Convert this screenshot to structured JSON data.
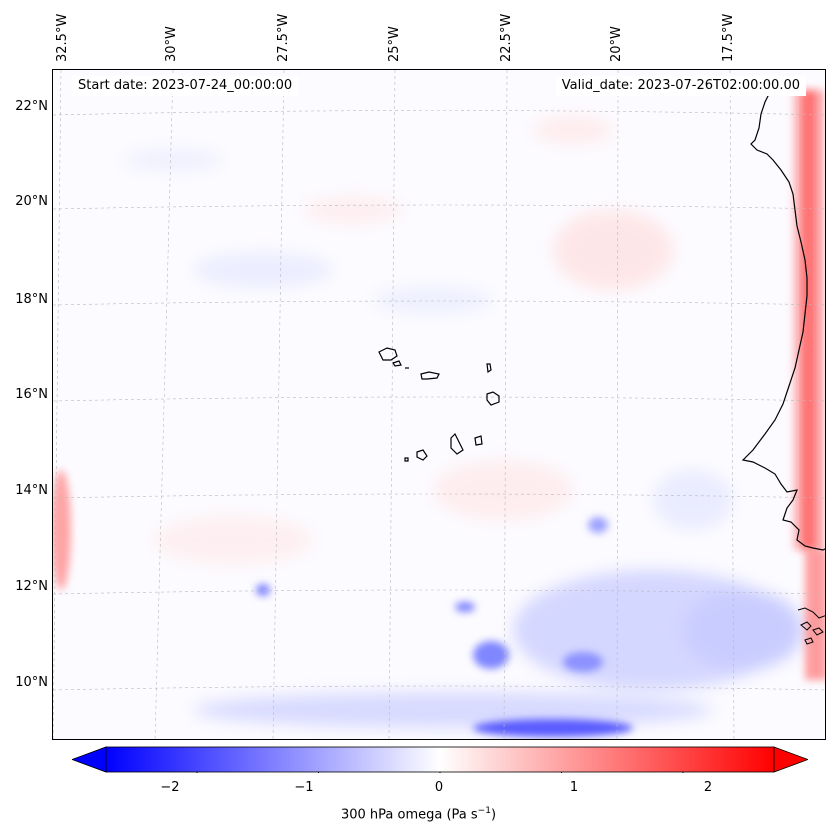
{
  "header": {
    "start_date": "Start date: 2023-07-24_00:00:00",
    "valid_date": "Valid_date: 2023-07-26T02:00:00.00"
  },
  "map": {
    "variable": "300 hPa omega",
    "lat_ticks": [
      "22°N",
      "20°N",
      "18°N",
      "16°N",
      "14°N",
      "12°N",
      "10°N"
    ],
    "lon_ticks": [
      "32.5°W",
      "30°W",
      "27.5°W",
      "25°W",
      "22.5°W",
      "20°W",
      "17.5°W"
    ],
    "colors": {
      "negative": "#0000ff",
      "zero": "#ffffff",
      "positive": "#ff0000",
      "coastline": "#000000"
    }
  },
  "colorbar": {
    "ticks": [
      "−2",
      "−1",
      "0",
      "1",
      "2"
    ],
    "tick_values": [
      -2,
      -1,
      0,
      1,
      2
    ],
    "range": [
      -2.75,
      2.75
    ],
    "label_prefix": "300 hPa omega (Pa s",
    "label_exp": "−1",
    "label_suffix": ")"
  }
}
